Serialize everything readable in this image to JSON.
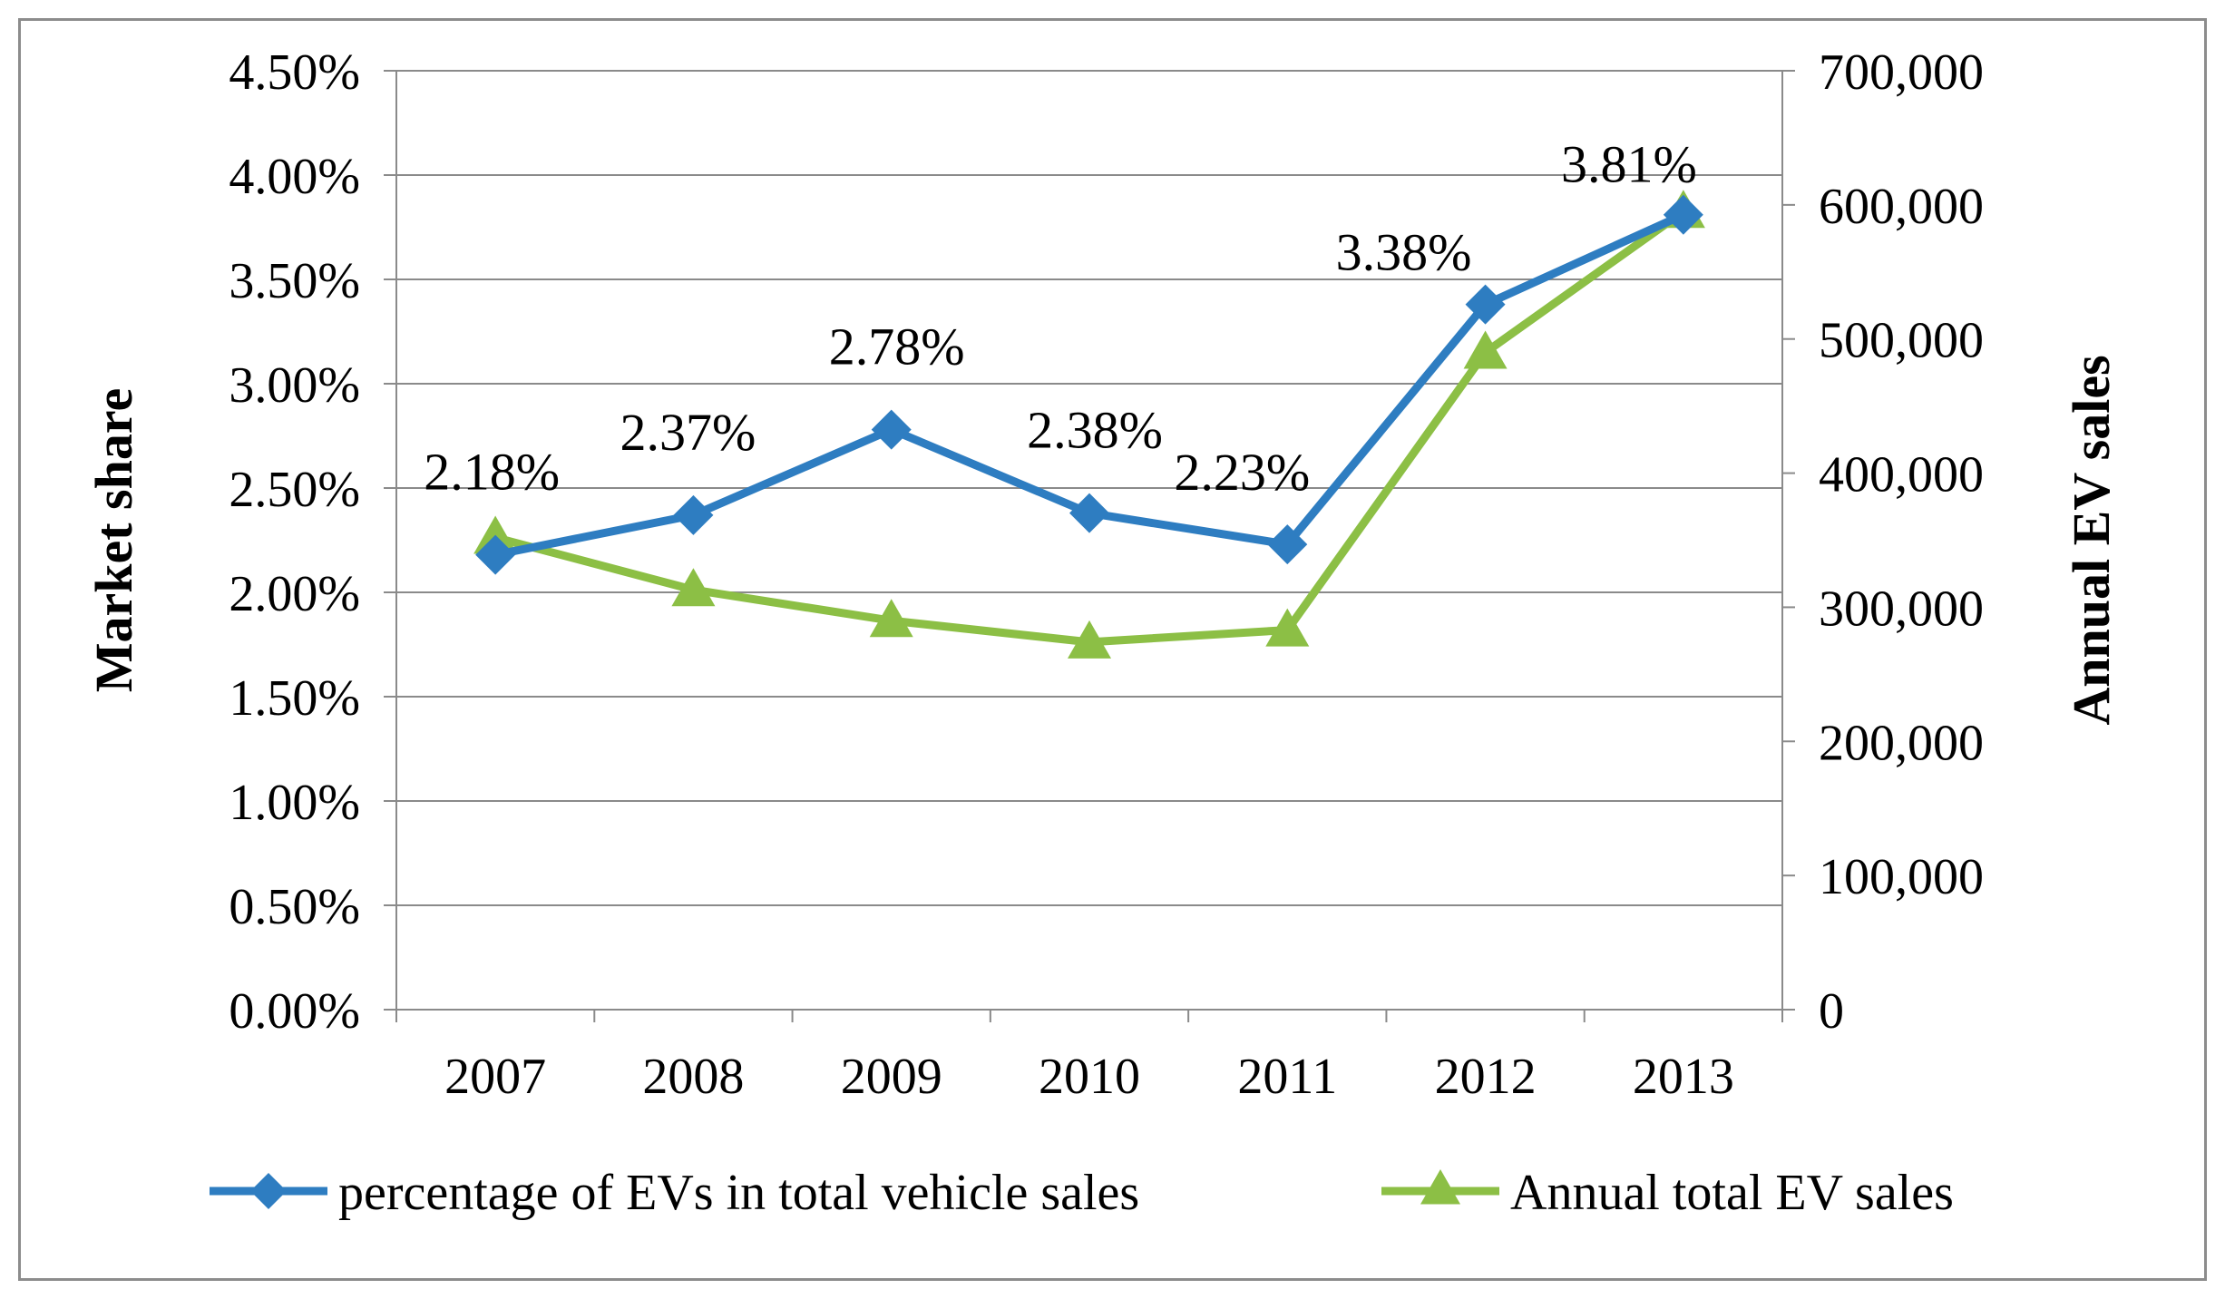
{
  "chart_data": {
    "type": "line",
    "title": "",
    "categories": [
      "2007",
      "2008",
      "2009",
      "2010",
      "2011",
      "2012",
      "2013"
    ],
    "y_left": {
      "label": "Market share",
      "range": [
        0,
        4.5
      ],
      "ticks": [
        "0.00%",
        "0.50%",
        "1.00%",
        "1.50%",
        "2.00%",
        "2.50%",
        "3.00%",
        "3.50%",
        "4.00%",
        "4.50%"
      ],
      "tick_values": [
        0,
        0.5,
        1,
        1.5,
        2,
        2.5,
        3,
        3.5,
        4,
        4.5
      ]
    },
    "y_right": {
      "label": "Annual EV sales",
      "range": [
        0,
        700000
      ],
      "ticks": [
        "0",
        "100,000",
        "200,000",
        "300,000",
        "400,000",
        "500,000",
        "600,000",
        "700,000"
      ],
      "tick_values": [
        0,
        100000,
        200000,
        300000,
        400000,
        500000,
        600000,
        700000
      ]
    },
    "gridlines": true,
    "legend_position": "bottom",
    "series": [
      {
        "name": "percentage of EVs in total vehicle sales",
        "axis": "left",
        "marker": "diamond",
        "color": "#2e7dc1",
        "values": [
          2.18,
          2.37,
          2.78,
          2.38,
          2.23,
          3.38,
          3.81
        ],
        "labels": [
          "2.18%",
          "2.37%",
          "2.78%",
          "2.38%",
          "2.23%",
          "3.38%",
          "3.81%"
        ]
      },
      {
        "name": "Annual total EV sales",
        "axis": "right",
        "marker": "triangle",
        "color": "#8cbf45",
        "values": [
          352000,
          313000,
          290000,
          274000,
          283000,
          490000,
          595000
        ]
      }
    ]
  }
}
